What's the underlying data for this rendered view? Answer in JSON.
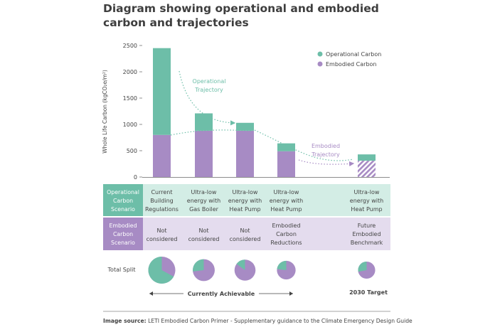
{
  "title_line1": "Diagram showing operational and embodied",
  "title_line2": "carbon and trajectories",
  "colors": {
    "operational": "#6dbea8",
    "embodied": "#a78bc4",
    "op_band": "#d3ede5",
    "emb_band": "#e4dcee",
    "op_label_bg": "#6dbea8",
    "emb_label_bg": "#a78bc4",
    "axis": "#555555"
  },
  "chart_data": {
    "type": "bar",
    "stacked": true,
    "ylabel": "Whole Life Carbon (kgCO₂e/m²)",
    "ylim": [
      0,
      2500
    ],
    "yticks": [
      0,
      500,
      1000,
      1500,
      2000,
      2500
    ],
    "legend_position": "top-right",
    "categories": [
      "Current Building Regulations",
      "Ultra-low energy with Gas Boiler",
      "Ultra-low energy with Heat Pump",
      "Ultra-low energy with Heat Pump",
      "Ultra-low energy with Heat Pump"
    ],
    "series": [
      {
        "name": "Embodied Carbon",
        "values": [
          800,
          880,
          880,
          490,
          310
        ]
      },
      {
        "name": "Operational Carbon",
        "values": [
          1650,
          330,
          150,
          150,
          120
        ]
      }
    ],
    "last_bar_hatched": true,
    "annotations": {
      "operational_trajectory_line1": "Operational",
      "operational_trajectory_line2": "Trajectory",
      "embodied_trajectory_line1": "Embodied",
      "embodied_trajectory_line2": "Trajectory"
    }
  },
  "rows": {
    "op_label": [
      "Operational",
      "Carbon",
      "Scenario"
    ],
    "op_cells": [
      [
        "Current",
        "Building",
        "Regulations"
      ],
      [
        "Ultra-low",
        "energy with",
        "Gas Boiler"
      ],
      [
        "Ultra-low",
        "energy with",
        "Heat Pump"
      ],
      [
        "Ultra-low",
        "energy with",
        "Heat Pump"
      ],
      [
        "Ultra-low",
        "energy with",
        "Heat Pump"
      ]
    ],
    "emb_label": [
      "Embodied",
      "Carbon",
      "Scenario"
    ],
    "emb_cells": [
      [
        "Not",
        "considered"
      ],
      [
        "Not",
        "considered"
      ],
      [
        "Not",
        "considered"
      ],
      [
        "Embodied",
        "Carbon",
        "Reductions"
      ],
      [
        "Future",
        "Embodied",
        "Benchmark"
      ]
    ]
  },
  "total_split": {
    "label": "Total Split",
    "pies": [
      {
        "operational_share": 0.67,
        "total": 2450
      },
      {
        "operational_share": 0.27,
        "total": 1210
      },
      {
        "operational_share": 0.15,
        "total": 1030
      },
      {
        "operational_share": 0.23,
        "total": 640
      },
      {
        "operational_share": 0.28,
        "total": 430
      }
    ]
  },
  "footer": {
    "currently_achievable": "Currently Achievable",
    "target": "2030 Target",
    "source_bold": "Image source:",
    "source_text": " LETI Embodied Carbon Primer -  Supplementary guidance to the Climate Emergency Design Guide"
  }
}
